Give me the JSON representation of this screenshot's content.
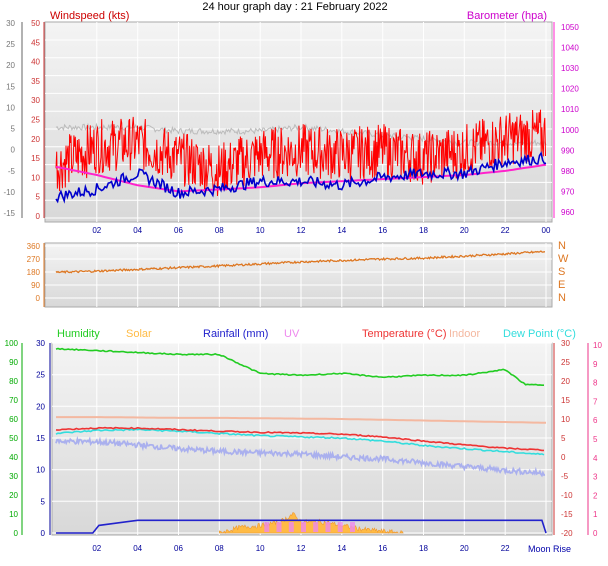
{
  "page_title": "24 hour graph day : 21 February 2022",
  "colors": {
    "wind": "#ff0000",
    "wind_dark": "#cc0000",
    "gust": "#bbbbbb",
    "pressure": "#ff22cc",
    "baro_label": "#cc00cc",
    "speed_line": "#0000cc",
    "direction": "#dd7722",
    "humidity": "#22cc22",
    "solar": "#ffbb44",
    "rain": "#2222cc",
    "uv": "#ee88ee",
    "temperature": "#ee3333",
    "indoor": "#f4b8a0",
    "dewpoint": "#33dddd",
    "trace_light": "#aab0ee",
    "axis_left": "#cc3333",
    "axis_blue": "#000099",
    "axis_green": "#00aa00",
    "axis_pink": "#ee3388",
    "panel_grid": "#ffffff"
  },
  "time_axis": {
    "ticks": [
      "02",
      "04",
      "06",
      "08",
      "10",
      "12",
      "14",
      "16",
      "18",
      "20",
      "22",
      "00"
    ],
    "moon_label": "Moon Rise",
    "moon_labels_bottom": [
      "Moon Rise"
    ]
  },
  "panels": {
    "wind": {
      "left_title": "Windspeed (kts)",
      "right_title": "Barometer (hpa)",
      "outer_left_ticks": [
        "30",
        "25",
        "20",
        "15",
        "10",
        "5",
        "0",
        "-5",
        "-10",
        "-15"
      ],
      "inner_left_ticks": [
        "50",
        "45",
        "40",
        "35",
        "30",
        "25",
        "20",
        "15",
        "10",
        "5",
        "0"
      ],
      "right_ticks": [
        "1050",
        "1040",
        "1030",
        "1020",
        "1010",
        "1000",
        "990",
        "980",
        "970",
        "960"
      ]
    },
    "direction": {
      "left_ticks": [
        "360",
        "270",
        "180",
        "90",
        "0"
      ],
      "compass": [
        "N",
        "W",
        "S",
        "E",
        "N"
      ]
    },
    "bottom": {
      "legend": [
        "Humidity",
        "Solar",
        "Rainfall (mm)",
        "UV",
        "Temperature (°C)",
        "Indoor",
        "Dew Point (°C)"
      ],
      "outer_left_ticks": [
        "100",
        "90",
        "80",
        "70",
        "60",
        "50",
        "40",
        "30",
        "20",
        "10",
        "0"
      ],
      "inner_left_ticks": [
        "30",
        "25",
        "20",
        "15",
        "10",
        "5",
        "0"
      ],
      "right_ticks": [
        "30",
        "25",
        "20",
        "15",
        "10",
        "5",
        "0",
        "-5",
        "-10",
        "-15",
        "-20"
      ],
      "far_right_ticks": [
        "10",
        "9",
        "8",
        "7",
        "6",
        "5",
        "4",
        "3",
        "2",
        "1",
        "0"
      ]
    }
  },
  "chart_data": [
    {
      "type": "line",
      "title": "24 hour graph day : 21 February 2022",
      "xlabel": "",
      "x_ticks": [
        "02",
        "04",
        "06",
        "08",
        "10",
        "12",
        "14",
        "16",
        "18",
        "20",
        "22",
        "00"
      ],
      "ylabel": "Windspeed (kts)",
      "ylim": [
        0,
        50
      ],
      "y2label": "Barometer (hpa)",
      "y2lim": [
        960,
        1050
      ],
      "series": [
        {
          "name": "Windspeed (kts)",
          "axis": "left",
          "x": [
            0,
            2,
            4,
            6,
            8,
            10,
            12,
            14,
            16,
            18,
            20,
            22,
            24
          ],
          "values": [
            13,
            18,
            19,
            15,
            12,
            16,
            17,
            16,
            17,
            15,
            17,
            20,
            21
          ]
        },
        {
          "name": "",
          "axis": "left",
          "x": [
            0,
            2,
            4,
            6,
            8,
            10,
            12,
            14,
            16,
            18,
            20,
            22,
            24
          ],
          "values": [
            5,
            7,
            11,
            6,
            7,
            9,
            9,
            8,
            10,
            11,
            11,
            14,
            15
          ]
        },
        {
          "name": "",
          "axis": "left",
          "x": [
            0,
            2,
            4,
            6,
            8,
            10,
            12,
            14,
            16,
            18,
            20,
            22,
            24
          ],
          "values": [
            23,
            23,
            23,
            22,
            22,
            22,
            23,
            22,
            21,
            20,
            19,
            19,
            19
          ]
        },
        {
          "name": "Barometer (hpa)",
          "axis": "right",
          "x": [
            0,
            2,
            4,
            6,
            8,
            10,
            12,
            14,
            16,
            18,
            20,
            22,
            24
          ],
          "values": [
            982,
            978,
            973,
            970,
            971,
            972,
            974,
            975,
            976,
            977,
            978,
            980,
            983
          ]
        }
      ]
    },
    {
      "type": "line",
      "ylabel": "",
      "ylim": [
        0,
        360
      ],
      "series": [
        {
          "name": "",
          "x": [
            0,
            2,
            4,
            6,
            8,
            10,
            12,
            14,
            16,
            18,
            20,
            22,
            24
          ],
          "values": [
            178,
            186,
            198,
            210,
            222,
            236,
            250,
            260,
            270,
            276,
            290,
            305,
            322
          ]
        }
      ]
    },
    {
      "type": "line",
      "ylim": [
        0,
        30
      ],
      "y2lim": [
        -20,
        30
      ],
      "series": [
        {
          "name": "Humidity",
          "axis": "outer_left_pct",
          "x": [
            0,
            2,
            4,
            6,
            8,
            10,
            12,
            14,
            16,
            18,
            20,
            22,
            23,
            24
          ],
          "values": [
            97,
            96,
            95,
            94,
            94,
            84,
            83,
            84,
            82,
            83,
            83,
            86,
            78,
            78
          ]
        },
        {
          "name": "Temperature (°C)",
          "axis": "right",
          "x": [
            0,
            2,
            4,
            6,
            8,
            10,
            12,
            14,
            16,
            18,
            20,
            22,
            24
          ],
          "values": [
            7.2,
            7.6,
            7.6,
            7.2,
            6.8,
            6.5,
            6.3,
            6.0,
            5.3,
            4.2,
            3.2,
            2.3,
            1.8
          ]
        },
        {
          "name": "Indoor",
          "axis": "right",
          "x": [
            0,
            2,
            4,
            6,
            8,
            10,
            12,
            14,
            16,
            18,
            20,
            22,
            24
          ],
          "values": [
            10.5,
            10.5,
            10.4,
            10.3,
            10.3,
            10.2,
            10.1,
            10.0,
            9.8,
            9.6,
            9.4,
            9.2,
            9.0
          ]
        },
        {
          "name": "Dew Point (°C)",
          "axis": "right",
          "x": [
            0,
            2,
            4,
            6,
            8,
            10,
            12,
            14,
            16,
            18,
            20,
            22,
            24
          ],
          "values": [
            6.2,
            7.0,
            7.2,
            6.8,
            6.2,
            5.6,
            5.3,
            5.0,
            4.2,
            3.0,
            2.2,
            1.4,
            0.6
          ]
        },
        {
          "name": "",
          "axis": "right",
          "x": [
            0,
            2,
            4,
            6,
            8,
            10,
            12,
            14,
            16,
            18,
            20,
            22,
            24
          ],
          "values": [
            4.2,
            4.0,
            3.2,
            2.2,
            1.5,
            1.1,
            0.8,
            0.0,
            -0.5,
            -1.5,
            -2.5,
            -3.5,
            -4.3
          ]
        },
        {
          "name": "Rainfall (mm)",
          "axis": "inner_left",
          "x": [
            0,
            1.8,
            2.1,
            4,
            6,
            8,
            10,
            12,
            14,
            16,
            18,
            20,
            22,
            23.8,
            24
          ],
          "values": [
            0,
            0,
            1.2,
            2,
            2,
            2,
            2,
            2,
            2,
            2,
            2,
            2,
            2,
            2,
            0
          ]
        },
        {
          "name": "Solar",
          "axis": "outer_left_pct",
          "x": [
            8,
            9,
            10,
            11,
            11.6,
            12,
            13,
            14,
            15,
            16,
            17
          ],
          "values": [
            0,
            3,
            4,
            6,
            10,
            6,
            6,
            4,
            2,
            1,
            0
          ]
        }
      ]
    }
  ]
}
